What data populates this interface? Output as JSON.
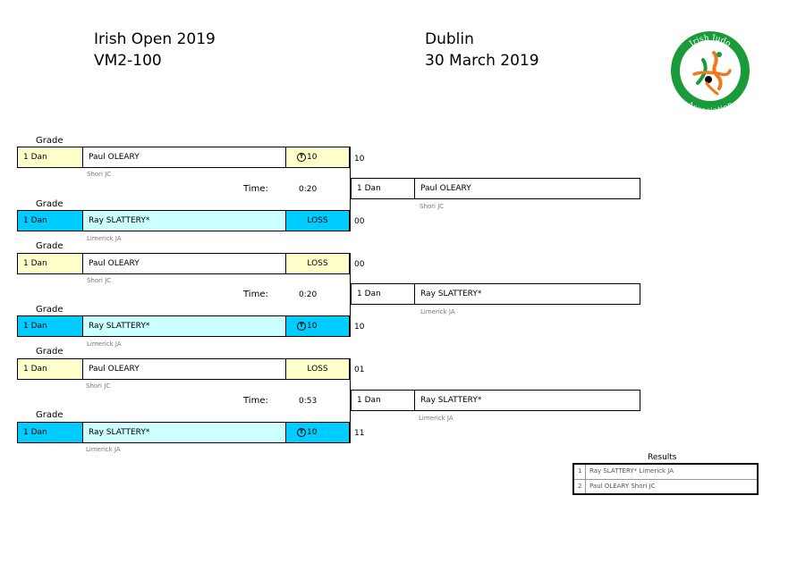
{
  "header": {
    "event": "Irish Open 2019",
    "category": "VM2-100",
    "location": "Dublin",
    "date": "30 March 2019",
    "logo_top_text": "Irish Judo",
    "logo_bottom_text": "Association"
  },
  "labels": {
    "grade": "Grade",
    "time": "Time:",
    "results": "Results"
  },
  "matches": [
    {
      "white": {
        "grade": "1 Dan",
        "name": "Paul OLEARY",
        "club": "Shori JC",
        "result": "10",
        "ippon": true,
        "score": "10"
      },
      "blue": {
        "grade": "1 Dan",
        "name": "Ray SLATTERY*",
        "club": "Limerick JA",
        "result": "LOSS",
        "ippon": false,
        "score": "00"
      },
      "time": "0:20",
      "winner": {
        "grade": "1 Dan",
        "name": "Paul OLEARY",
        "club": "Shori JC"
      }
    },
    {
      "white": {
        "grade": "1 Dan",
        "name": "Paul OLEARY",
        "club": "Shori JC",
        "result": "LOSS",
        "ippon": false,
        "score": "00"
      },
      "blue": {
        "grade": "1 Dan",
        "name": "Ray SLATTERY*",
        "club": "Limerick JA",
        "result": "10",
        "ippon": true,
        "score": "10"
      },
      "time": "0:20",
      "winner": {
        "grade": "1 Dan",
        "name": "Ray SLATTERY*",
        "club": "Limerick JA"
      }
    },
    {
      "white": {
        "grade": "1 Dan",
        "name": "Paul OLEARY",
        "club": "Shori JC",
        "result": "LOSS",
        "ippon": false,
        "score": "01"
      },
      "blue": {
        "grade": "1 Dan",
        "name": "Ray SLATTERY*",
        "club": "Limerick JA",
        "result": "10",
        "ippon": true,
        "score": "11"
      },
      "time": "0:53",
      "winner": {
        "grade": "1 Dan",
        "name": "Ray SLATTERY*",
        "club": "Limerick JA"
      }
    }
  ],
  "results": [
    {
      "rank": "1",
      "text": "Ray SLATTERY* Limerick JA"
    },
    {
      "rank": "2",
      "text": "Paul OLEARY Shori JC"
    }
  ],
  "colors": {
    "white_row": "#ffffcc",
    "blue_row": "#ccffff",
    "blue_grade": "#00ccff",
    "logo_green": "#1a9a3a",
    "logo_orange": "#f07820"
  }
}
